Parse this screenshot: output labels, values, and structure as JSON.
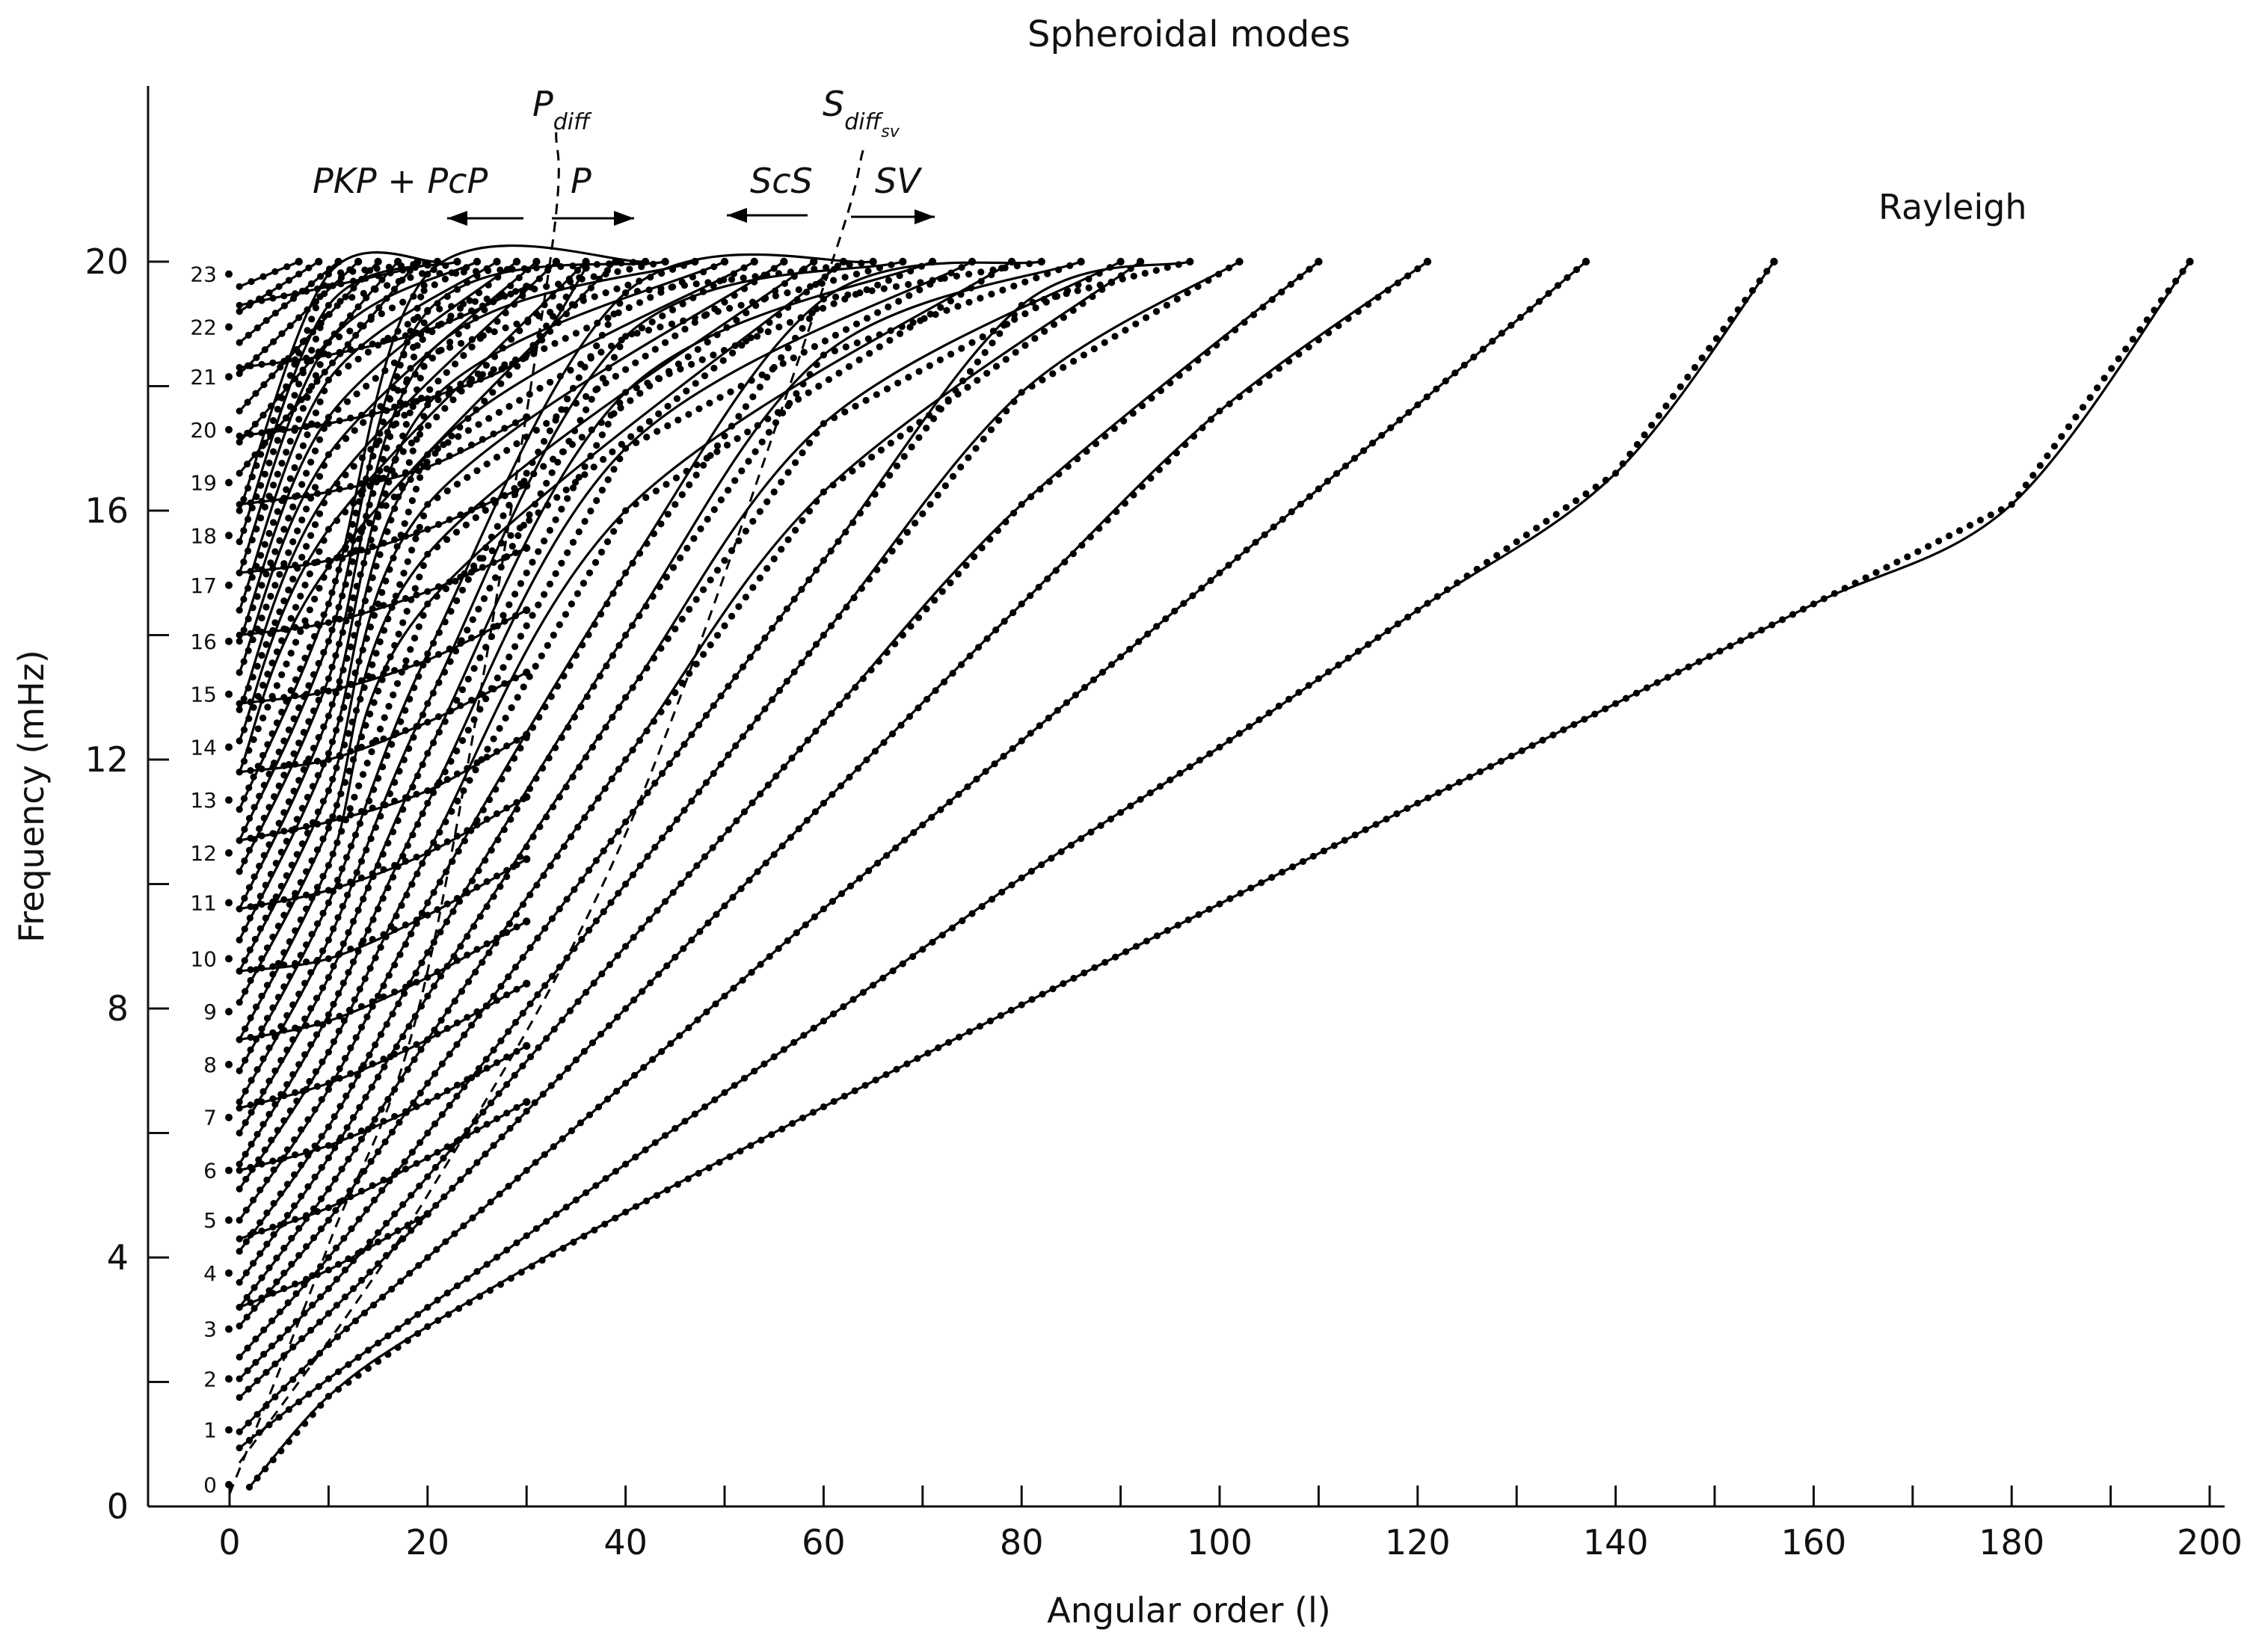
{
  "chart_data": {
    "type": "line",
    "title": "Spheroidal modes",
    "xlabel": "Angular order (l)",
    "ylabel": "Frequency (mHz)",
    "xlim": [
      -8,
      200
    ],
    "ylim": [
      0,
      22.5
    ],
    "xticks": [
      0,
      20,
      40,
      60,
      80,
      100,
      120,
      140,
      160,
      180,
      200
    ],
    "yticks": [
      0,
      4,
      8,
      12,
      16,
      20
    ],
    "branch_labels": [
      "0",
      "1",
      "2",
      "3",
      "4",
      "5",
      "6",
      "7",
      "8",
      "9",
      "10",
      "11",
      "12",
      "13",
      "14",
      "15",
      "16",
      "17",
      "18",
      "19",
      "20",
      "21",
      "22",
      "23"
    ],
    "annotations": {
      "pkp_pcp": "PKP + PcP",
      "p": "P",
      "p_diff_main": "P",
      "p_diff_sub": "diff",
      "scs": "ScS",
      "sv": "SV",
      "s_diff_main": "S",
      "s_diff_sub": "diff",
      "s_diff_subsub": "sv",
      "rayleigh": "Rayleigh"
    },
    "series": [
      {
        "points": [
          [
            2,
            0.31
          ],
          [
            10,
            1.77
          ],
          [
            20,
            2.89
          ],
          [
            40,
            4.73
          ],
          [
            60,
            6.42
          ],
          [
            80,
            8.06
          ],
          [
            100,
            9.68
          ],
          [
            120,
            11.3
          ],
          [
            140,
            12.9
          ],
          [
            160,
            14.5
          ],
          [
            180,
            16.1
          ],
          [
            198,
            20.0
          ]
        ]
      },
      {
        "points": [
          [
            1,
            0.94
          ],
          [
            10,
            2.05
          ],
          [
            20,
            3.2
          ],
          [
            40,
            5.5
          ],
          [
            60,
            7.8
          ],
          [
            80,
            10.1
          ],
          [
            100,
            12.2
          ],
          [
            120,
            14.4
          ],
          [
            140,
            16.6
          ],
          [
            156,
            20.0
          ]
        ]
      },
      {
        "points": [
          [
            1,
            1.2
          ],
          [
            10,
            2.6
          ],
          [
            20,
            4.0
          ],
          [
            40,
            6.8
          ],
          [
            60,
            9.6
          ],
          [
            80,
            12.3
          ],
          [
            100,
            15.0
          ],
          [
            120,
            17.7
          ],
          [
            137,
            20.0
          ]
        ]
      },
      {
        "points": [
          [
            1,
            1.75
          ],
          [
            10,
            3.1
          ],
          [
            20,
            4.7
          ],
          [
            40,
            8.0
          ],
          [
            60,
            11.3
          ],
          [
            80,
            14.5
          ],
          [
            100,
            17.6
          ],
          [
            121,
            20.0
          ]
        ]
      },
      {
        "points": [
          [
            1,
            2.05
          ],
          [
            10,
            3.5
          ],
          [
            20,
            5.3
          ],
          [
            40,
            9.0
          ],
          [
            60,
            12.6
          ],
          [
            80,
            16.1
          ],
          [
            110,
            20.0
          ]
        ]
      },
      {
        "points": [
          [
            1,
            2.4
          ],
          [
            10,
            4.0
          ],
          [
            20,
            6.0
          ],
          [
            40,
            10.0
          ],
          [
            60,
            14.0
          ],
          [
            80,
            17.9
          ],
          [
            102,
            20.0
          ]
        ]
      },
      {
        "points": [
          [
            1,
            2.9
          ],
          [
            10,
            4.6
          ],
          [
            20,
            6.8
          ],
          [
            40,
            11.0
          ],
          [
            60,
            15.2
          ],
          [
            80,
            19.3
          ],
          [
            97,
            20.0
          ]
        ]
      },
      {
        "points": [
          [
            1,
            3.2
          ],
          [
            10,
            5.1
          ],
          [
            20,
            7.5
          ],
          [
            40,
            12.0
          ],
          [
            60,
            16.3
          ],
          [
            92,
            20.0
          ]
        ]
      },
      {
        "points": [
          [
            1,
            3.6
          ],
          [
            10,
            5.6
          ],
          [
            20,
            8.2
          ],
          [
            40,
            13.0
          ],
          [
            60,
            17.4
          ],
          [
            90,
            20.0
          ]
        ]
      },
      {
        "points": [
          [
            1,
            4.1
          ],
          [
            10,
            6.1
          ],
          [
            20,
            8.9
          ],
          [
            40,
            14.0
          ],
          [
            60,
            18.5
          ],
          [
            86,
            20.0
          ]
        ]
      },
      {
        "points": [
          [
            1,
            4.6
          ],
          [
            10,
            6.7
          ],
          [
            20,
            9.7
          ],
          [
            40,
            15.0
          ],
          [
            60,
            19.4
          ],
          [
            82,
            20.0
          ]
        ]
      },
      {
        "points": [
          [
            1,
            5.1
          ],
          [
            10,
            7.3
          ],
          [
            20,
            10.5
          ],
          [
            40,
            16.0
          ],
          [
            79,
            20.0
          ]
        ]
      },
      {
        "points": [
          [
            1,
            5.5
          ],
          [
            10,
            7.9
          ],
          [
            20,
            11.3
          ],
          [
            40,
            17.0
          ],
          [
            75,
            20.0
          ]
        ]
      },
      {
        "points": [
          [
            1,
            6.0
          ],
          [
            10,
            8.5
          ],
          [
            20,
            12.1
          ],
          [
            40,
            17.9
          ],
          [
            71,
            20.0
          ]
        ]
      },
      {
        "points": [
          [
            1,
            6.5
          ],
          [
            10,
            9.1
          ],
          [
            20,
            12.9
          ],
          [
            40,
            18.8
          ],
          [
            68,
            20.0
          ]
        ]
      },
      {
        "points": [
          [
            1,
            7.0
          ],
          [
            10,
            9.7
          ],
          [
            20,
            13.7
          ],
          [
            40,
            19.5
          ],
          [
            65,
            20.0
          ]
        ]
      },
      {
        "points": [
          [
            1,
            7.5
          ],
          [
            10,
            10.3
          ],
          [
            20,
            14.5
          ],
          [
            62,
            20.0
          ]
        ]
      },
      {
        "points": [
          [
            1,
            8.1
          ],
          [
            10,
            10.9
          ],
          [
            20,
            15.3
          ],
          [
            59,
            20.0
          ]
        ]
      },
      {
        "points": [
          [
            1,
            8.6
          ],
          [
            10,
            11.5
          ],
          [
            20,
            16.1
          ],
          [
            56,
            20.0
          ]
        ]
      },
      {
        "points": [
          [
            1,
            9.1
          ],
          [
            10,
            12.1
          ],
          [
            20,
            16.9
          ],
          [
            53,
            20.0
          ]
        ]
      },
      {
        "points": [
          [
            1,
            9.6
          ],
          [
            10,
            12.7
          ],
          [
            20,
            17.7
          ],
          [
            50,
            20.0
          ]
        ]
      },
      {
        "points": [
          [
            1,
            10.2
          ],
          [
            10,
            13.3
          ],
          [
            20,
            18.5
          ],
          [
            47,
            20.0
          ]
        ]
      },
      {
        "points": [
          [
            1,
            10.7
          ],
          [
            10,
            13.9
          ],
          [
            20,
            19.2
          ],
          [
            44,
            20.0
          ]
        ]
      },
      {
        "points": [
          [
            1,
            11.2
          ],
          [
            10,
            14.5
          ],
          [
            20,
            19.8
          ],
          [
            42,
            20.0
          ]
        ]
      },
      {
        "points": [
          [
            1,
            11.8
          ],
          [
            10,
            15.1
          ],
          [
            39,
            20.0
          ]
        ]
      },
      {
        "points": [
          [
            1,
            12.3
          ],
          [
            10,
            15.7
          ],
          [
            36,
            20.0
          ]
        ]
      },
      {
        "points": [
          [
            1,
            12.8
          ],
          [
            10,
            16.3
          ],
          [
            33,
            20.0
          ]
        ]
      },
      {
        "points": [
          [
            1,
            13.4
          ],
          [
            10,
            16.9
          ],
          [
            31,
            20.0
          ]
        ]
      },
      {
        "points": [
          [
            1,
            13.9
          ],
          [
            10,
            17.5
          ],
          [
            29,
            20.0
          ]
        ]
      },
      {
        "points": [
          [
            1,
            14.4
          ],
          [
            10,
            18.1
          ],
          [
            27,
            20.0
          ]
        ]
      },
      {
        "points": [
          [
            1,
            15.0
          ],
          [
            10,
            18.7
          ],
          [
            25,
            20.0
          ]
        ]
      },
      {
        "points": [
          [
            1,
            15.5
          ],
          [
            10,
            19.3
          ],
          [
            23,
            20.0
          ]
        ]
      },
      {
        "points": [
          [
            1,
            16.0
          ],
          [
            10,
            19.8
          ],
          [
            21,
            20.0
          ]
        ]
      },
      {
        "points": [
          [
            1,
            16.6
          ],
          [
            19,
            20.0
          ]
        ]
      },
      {
        "points": [
          [
            1,
            17.1
          ],
          [
            17,
            20.0
          ]
        ]
      },
      {
        "points": [
          [
            1,
            17.6
          ],
          [
            15,
            20.0
          ]
        ]
      },
      {
        "points": [
          [
            1,
            18.2
          ],
          [
            13,
            20.0
          ]
        ]
      },
      {
        "points": [
          [
            1,
            18.7
          ],
          [
            11,
            20.0
          ]
        ]
      },
      {
        "points": [
          [
            1,
            19.2
          ],
          [
            9,
            20.0
          ]
        ]
      },
      {
        "points": [
          [
            1,
            19.6
          ],
          [
            7,
            20.0
          ]
        ]
      }
    ],
    "overtones": [
      {
        "points": [
          [
            1,
            19.3
          ],
          [
            10,
            19.6
          ],
          [
            20,
            19.95
          ]
        ]
      },
      {
        "points": [
          [
            1,
            18.3
          ],
          [
            10,
            18.5
          ],
          [
            20,
            18.9
          ],
          [
            30,
            19.6
          ]
        ]
      },
      {
        "points": [
          [
            1,
            17.2
          ],
          [
            10,
            17.4
          ],
          [
            20,
            17.8
          ],
          [
            30,
            18.5
          ],
          [
            36,
            19.9
          ]
        ]
      },
      {
        "points": [
          [
            1,
            16.1
          ],
          [
            10,
            16.3
          ],
          [
            20,
            16.7
          ],
          [
            30,
            17.5
          ]
        ]
      },
      {
        "points": [
          [
            1,
            15.0
          ],
          [
            10,
            15.2
          ],
          [
            20,
            15.7
          ],
          [
            30,
            16.4
          ]
        ]
      },
      {
        "points": [
          [
            1,
            14.0
          ],
          [
            10,
            14.2
          ],
          [
            20,
            14.7
          ],
          [
            30,
            15.4
          ]
        ]
      },
      {
        "points": [
          [
            1,
            12.9
          ],
          [
            10,
            13.1
          ],
          [
            20,
            13.6
          ],
          [
            30,
            14.4
          ]
        ]
      },
      {
        "points": [
          [
            1,
            11.8
          ],
          [
            10,
            12.0
          ],
          [
            20,
            12.6
          ],
          [
            30,
            13.4
          ]
        ]
      },
      {
        "points": [
          [
            1,
            10.7
          ],
          [
            10,
            11.0
          ],
          [
            20,
            11.5
          ],
          [
            30,
            12.4
          ]
        ]
      },
      {
        "points": [
          [
            1,
            9.6
          ],
          [
            10,
            9.9
          ],
          [
            20,
            10.5
          ],
          [
            30,
            11.4
          ]
        ]
      },
      {
        "points": [
          [
            1,
            8.6
          ],
          [
            10,
            8.8
          ],
          [
            20,
            9.5
          ],
          [
            30,
            10.4
          ]
        ]
      },
      {
        "points": [
          [
            1,
            7.5
          ],
          [
            10,
            7.8
          ],
          [
            20,
            8.5
          ],
          [
            30,
            9.4
          ]
        ]
      },
      {
        "points": [
          [
            1,
            6.4
          ],
          [
            10,
            6.8
          ],
          [
            20,
            7.5
          ],
          [
            30,
            8.4
          ]
        ]
      },
      {
        "points": [
          [
            1,
            5.4
          ],
          [
            10,
            5.8
          ],
          [
            20,
            6.5
          ],
          [
            30,
            7.4
          ]
        ]
      },
      {
        "points": [
          [
            1,
            4.3
          ],
          [
            10,
            4.8
          ],
          [
            20,
            5.6
          ],
          [
            30,
            6.5
          ]
        ]
      },
      {
        "points": [
          [
            1,
            3.2
          ],
          [
            10,
            3.8
          ],
          [
            20,
            4.7
          ]
        ]
      }
    ],
    "dashed_lines": [
      {
        "points": [
          [
            0,
            0.2
          ],
          [
            10,
            4.2
          ],
          [
            20,
            8.6
          ],
          [
            32,
            19.6
          ],
          [
            33,
            22.1
          ]
        ]
      },
      {
        "points": [
          [
            1,
            0.7
          ],
          [
            20,
            5.0
          ],
          [
            40,
            10.8
          ],
          [
            60,
            19.6
          ],
          [
            64,
            21.8
          ]
        ]
      }
    ]
  }
}
